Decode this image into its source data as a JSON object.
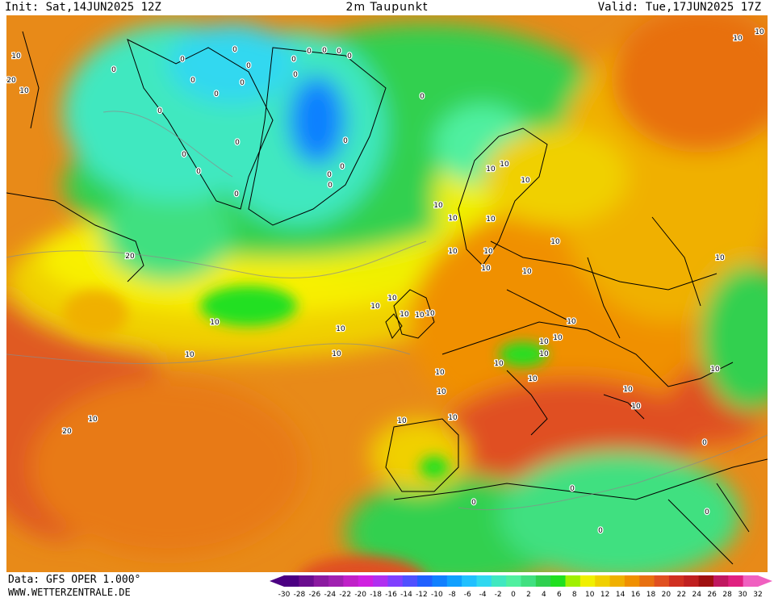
{
  "header": {
    "init": "Init: Sat,14JUN2025 12Z",
    "title": "2m Taupunkt",
    "valid": "Valid: Tue,17JUN2025 17Z"
  },
  "footer": {
    "data": "Data: GFS OPER 1.000°",
    "site": "WWW.WETTERZENTRALE.DE"
  },
  "legend": {
    "ticks": [
      "-30",
      "-28",
      "-26",
      "-24",
      "-22",
      "-20",
      "-18",
      "-16",
      "-14",
      "-12",
      "-10",
      "-8",
      "-6",
      "-4",
      "-2",
      "0",
      "2",
      "4",
      "6",
      "8",
      "10",
      "12",
      "14",
      "16",
      "18",
      "20",
      "22",
      "24",
      "26",
      "28",
      "30",
      "32"
    ],
    "colors": [
      "#4b0082",
      "#6a0d8f",
      "#8b1aa0",
      "#a020b0",
      "#c020c8",
      "#d020e0",
      "#b030f0",
      "#8040ff",
      "#5050ff",
      "#2060ff",
      "#1080ff",
      "#10a0ff",
      "#20c0ff",
      "#30d8f0",
      "#40e8c0",
      "#50f0a0",
      "#40e080",
      "#30d050",
      "#20e020",
      "#a0f000",
      "#f0f000",
      "#f0d000",
      "#f0b000",
      "#f09000",
      "#e87010",
      "#e05020",
      "#d03020",
      "#c02020",
      "#a01010",
      "#c01860",
      "#e02080",
      "#f060c0"
    ]
  },
  "map": {
    "contour_labels": [
      {
        "value": "10"
      },
      {
        "value": "20"
      },
      {
        "value": "10"
      },
      {
        "value": "0"
      },
      {
        "value": "0"
      },
      {
        "value": "0"
      },
      {
        "value": "0"
      },
      {
        "value": "0"
      },
      {
        "value": "0"
      },
      {
        "value": "0"
      },
      {
        "value": "0"
      },
      {
        "value": "0"
      },
      {
        "value": "0"
      },
      {
        "value": "0"
      },
      {
        "value": "0"
      },
      {
        "value": "0"
      },
      {
        "value": "0"
      },
      {
        "value": "0"
      },
      {
        "value": "0"
      },
      {
        "value": "0"
      },
      {
        "value": "0"
      },
      {
        "value": "0"
      },
      {
        "value": "0"
      },
      {
        "value": "0"
      },
      {
        "value": "0"
      },
      {
        "value": "0"
      },
      {
        "value": "10"
      },
      {
        "value": "10"
      },
      {
        "value": "10"
      },
      {
        "value": "10"
      },
      {
        "value": "10"
      },
      {
        "value": "10"
      },
      {
        "value": "10"
      },
      {
        "value": "10"
      },
      {
        "value": "10"
      },
      {
        "value": "10"
      },
      {
        "value": "10"
      },
      {
        "value": "10"
      },
      {
        "value": "10"
      },
      {
        "value": "10"
      },
      {
        "value": "10"
      },
      {
        "value": "10"
      },
      {
        "value": "10"
      },
      {
        "value": "10"
      },
      {
        "value": "10"
      },
      {
        "value": "10"
      },
      {
        "value": "10"
      },
      {
        "value": "10"
      },
      {
        "value": "10"
      },
      {
        "value": "10"
      },
      {
        "value": "10"
      },
      {
        "value": "10"
      },
      {
        "value": "10"
      },
      {
        "value": "10"
      },
      {
        "value": "10"
      },
      {
        "value": "10"
      },
      {
        "value": "10"
      },
      {
        "value": "10"
      },
      {
        "value": "10"
      },
      {
        "value": "10"
      },
      {
        "value": "10"
      },
      {
        "value": "20"
      },
      {
        "value": "20"
      },
      {
        "value": "10"
      },
      {
        "value": "10"
      },
      {
        "value": "0"
      },
      {
        "value": "0"
      },
      {
        "value": "0"
      },
      {
        "value": "0"
      },
      {
        "value": "0"
      }
    ]
  }
}
